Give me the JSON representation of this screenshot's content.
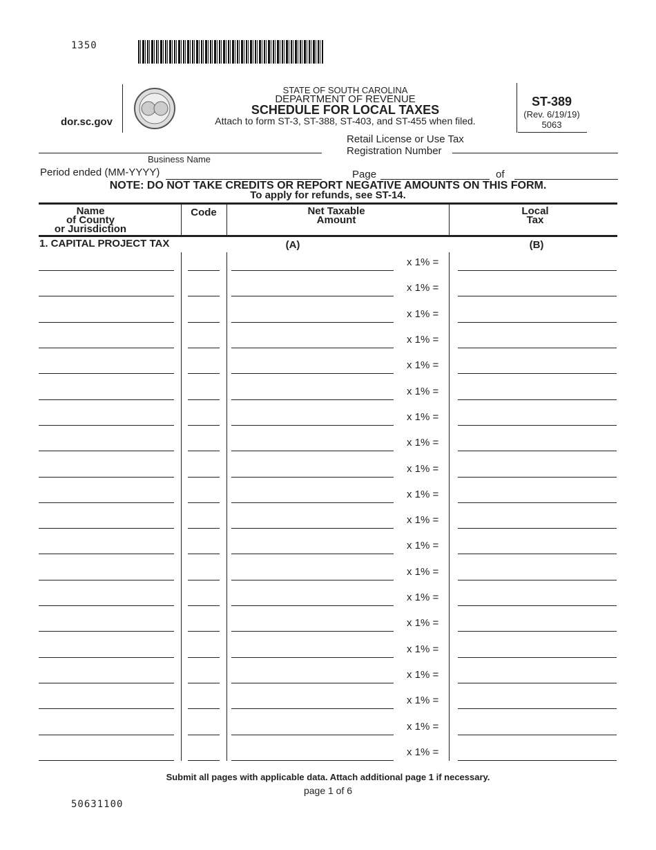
{
  "top_code": "1350",
  "bottom_code": "50631100",
  "header": {
    "website": "dor.sc.gov",
    "state": "STATE OF SOUTH CAROLINA",
    "department": "DEPARTMENT OF REVENUE",
    "title": "SCHEDULE FOR LOCAL TAXES",
    "attach_note": "Attach to form ST-3, ST-388, ST-403, and ST-455 when filed.",
    "form_number": "ST-389",
    "revision": "(Rev. 6/19/19)",
    "form_code": "5063"
  },
  "fields": {
    "business_name_label": "Business Name",
    "business_name_value": "",
    "registration_label_line1": "Retail License or Use Tax",
    "registration_label_line2": "Registration Number",
    "registration_value": "",
    "period_label": "Period ended (MM-YYYY)",
    "period_value": "",
    "page_label": "Page",
    "page_value": "",
    "of_label": "of",
    "of_value": ""
  },
  "note": {
    "line1": "NOTE: DO NOT TAKE CREDITS OR REPORT NEGATIVE AMOUNTS ON THIS FORM.",
    "line2": "To apply for refunds, see ST-14."
  },
  "table": {
    "col_name": [
      "Name",
      "of County",
      "or Jurisdiction"
    ],
    "col_code": "Code",
    "col_amount": [
      "Net Taxable",
      "Amount"
    ],
    "col_tax": [
      "Local",
      "Tax"
    ],
    "section_title": "1. CAPITAL PROJECT TAX",
    "col_a": "(A)",
    "col_b": "(B)",
    "rate_text": "x 1% =",
    "row_count": 20
  },
  "footer": {
    "instruction": "Submit all pages with applicable data. Attach additional page 1 if necessary.",
    "page_info": "page 1 of 6"
  }
}
